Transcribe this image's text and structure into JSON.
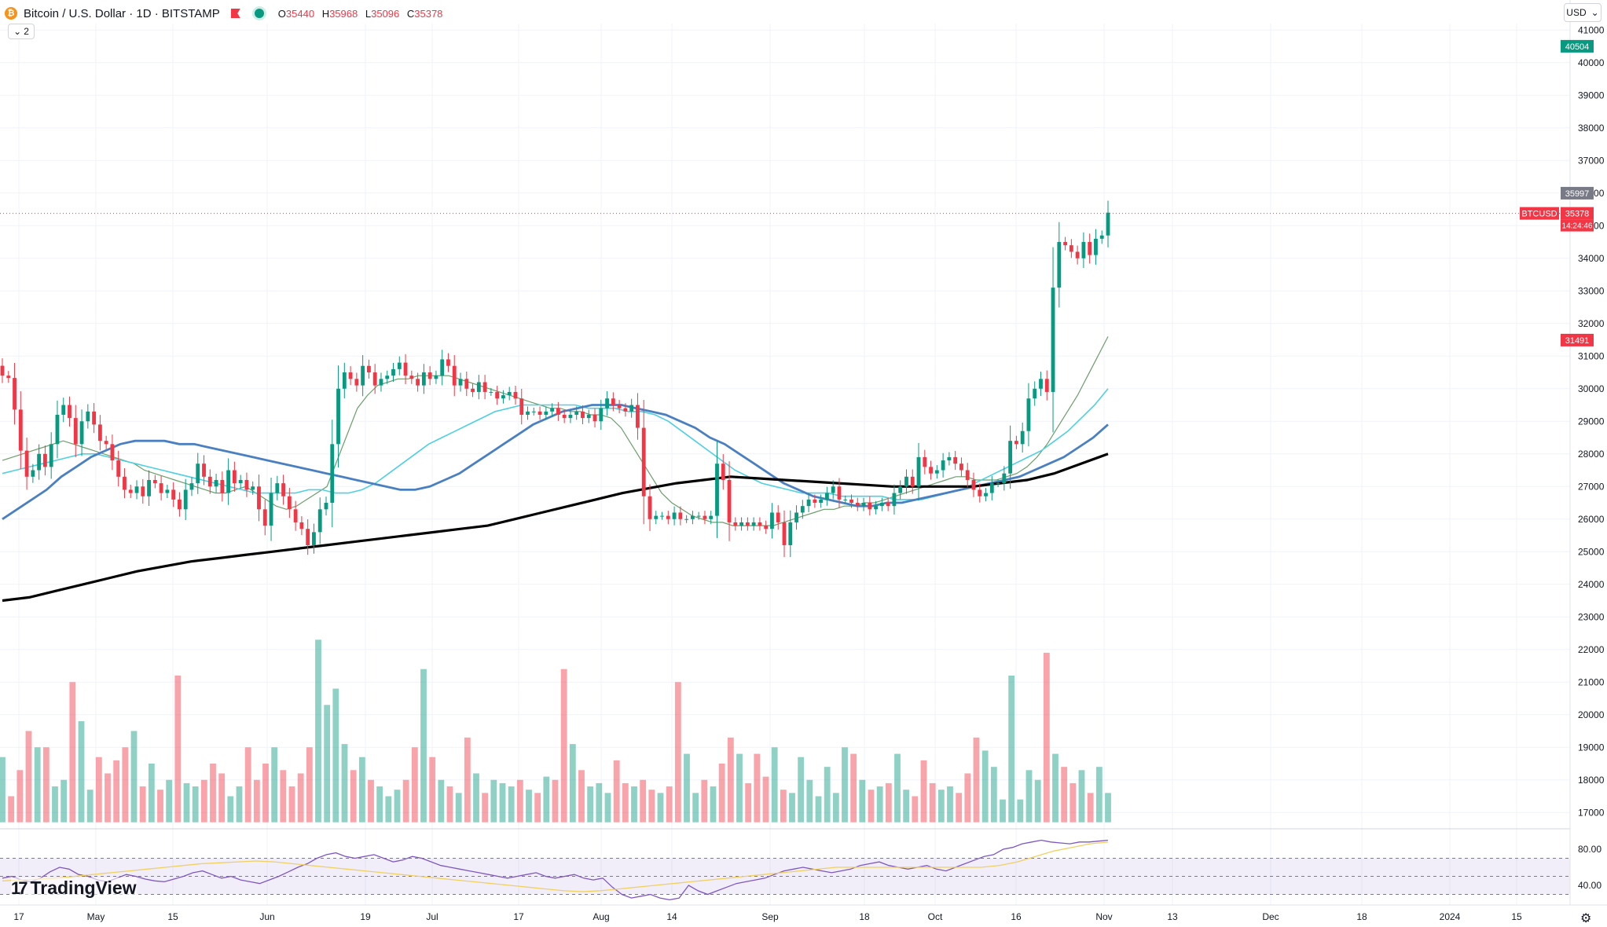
{
  "header": {
    "symbol_title": "Bitcoin / U.S. Dollar · 1D · BITSTAMP",
    "ohlc": [
      {
        "key": "O",
        "value": "35440"
      },
      {
        "key": "H",
        "value": "35968"
      },
      {
        "key": "L",
        "value": "35096"
      },
      {
        "key": "C",
        "value": "35378"
      }
    ],
    "indicators_count": "2",
    "currency": "USD"
  },
  "branding": {
    "logo": "TradingView"
  },
  "colors": {
    "up": "#089981",
    "down": "#f23645",
    "ma_black": "#000000",
    "ma_blue": "#4a80c2",
    "ma_cyan": "#4dd0e1",
    "ma_green": "#6b9e6b",
    "rsi": "#7e57c2",
    "rsi_ma": "#f0d060"
  },
  "chart_data": [
    {
      "type": "candlestick",
      "symbol": "BTCUSD",
      "x_tick_labels": [
        "17",
        "May",
        "15",
        "Jun",
        "19",
        "Jul",
        "17",
        "Aug",
        "14",
        "Sep",
        "18",
        "Oct",
        "16",
        "Nov",
        "13",
        "Dec",
        "18",
        "2024",
        "15"
      ],
      "y_tick_labels": [
        "41000",
        "40000",
        "39000",
        "38000",
        "37000",
        "36000",
        "35000",
        "34000",
        "33000",
        "32000",
        "31000",
        "30000",
        "29000",
        "28000",
        "27000",
        "26000",
        "25000",
        "24000",
        "23000",
        "22000",
        "21000",
        "20000",
        "19000",
        "18000",
        "17000"
      ],
      "ylim": [
        16500,
        41200
      ],
      "price_labels": [
        {
          "label": "",
          "value": 40504,
          "color": "#089981"
        },
        {
          "label": "",
          "value": 35997,
          "color": "#787b86"
        },
        {
          "label": "BTCUSD",
          "value": 35378,
          "color": "#f23645",
          "countdown": "14:24:46"
        },
        {
          "label": "",
          "value": 31491,
          "color": "#f23645"
        }
      ],
      "last_price": 35378,
      "closes": [
        30400,
        30330,
        29360,
        28100,
        27300,
        27500,
        28000,
        27600,
        28300,
        29200,
        29500,
        29100,
        28300,
        29000,
        29300,
        28900,
        28400,
        28300,
        27800,
        27300,
        26900,
        26800,
        27000,
        26700,
        27200,
        27100,
        26800,
        26900,
        26600,
        26300,
        26900,
        27100,
        27700,
        27300,
        27000,
        27200,
        26800,
        27500,
        27100,
        27200,
        26900,
        27000,
        26300,
        25800,
        26800,
        27100,
        26700,
        26300,
        25900,
        25700,
        25200,
        25600,
        26300,
        26500,
        28300,
        30000,
        30500,
        30300,
        30100,
        30700,
        30500,
        30100,
        30300,
        30400,
        30600,
        30800,
        30400,
        30300,
        30100,
        30500,
        30300,
        30400,
        30900,
        30700,
        30100,
        30300,
        30000,
        29900,
        30200,
        29900,
        29900,
        29700,
        29800,
        29900,
        29700,
        29200,
        29300,
        29300,
        29200,
        29300,
        29400,
        29200,
        29100,
        29200,
        29300,
        29100,
        29200,
        29000,
        29400,
        29700,
        29500,
        29400,
        29300,
        29500,
        28800,
        26700,
        26000,
        26100,
        26100,
        26000,
        26200,
        26000,
        26000,
        26100,
        26100,
        26000,
        26100,
        27700,
        27200,
        25900,
        25800,
        25900,
        25800,
        25900,
        25800,
        25700,
        26200,
        25900,
        25200,
        25900,
        26200,
        26400,
        26600,
        26500,
        26600,
        26800,
        27000,
        26600,
        26600,
        26500,
        26400,
        26500,
        26300,
        26400,
        26500,
        26400,
        26800,
        27000,
        27300,
        27000,
        27900,
        27600,
        27400,
        27500,
        27800,
        27900,
        27700,
        27500,
        27200,
        26900,
        26700,
        26800,
        27100,
        27100,
        27400,
        28400,
        28300,
        28700,
        29700,
        30000,
        30300,
        29900,
        33100,
        34500,
        34400,
        34200,
        34000,
        34500,
        34100,
        34600,
        34700,
        35400
      ],
      "series": [
        {
          "name": "",
          "values": [
            27800,
            27900,
            28000,
            28100,
            28200,
            28300,
            28400,
            28300,
            28200,
            28100,
            28000,
            27900,
            27800,
            27700,
            27500,
            27400,
            27300,
            27200,
            27100,
            27000,
            26900,
            26800,
            26800,
            26900,
            27000,
            26800,
            26600,
            26400,
            26300,
            26400,
            26600,
            26800,
            27000,
            27800,
            28600,
            29400,
            29800,
            30100,
            30200,
            30300,
            30300,
            30400,
            30400,
            30400,
            30400,
            30300,
            30200,
            30100,
            30000,
            29900,
            29800,
            29700,
            29600,
            29500,
            29400,
            29400,
            29300,
            29300,
            29200,
            29200,
            29100,
            28800,
            28300,
            27800,
            27300,
            26800,
            26500,
            26300,
            26100,
            26000,
            25900,
            25900,
            25800,
            25800,
            25800,
            25800,
            25800,
            25900,
            26000,
            26100,
            26200,
            26300,
            26300,
            26400,
            26400,
            26500,
            26500,
            26600,
            26700,
            26800,
            26900,
            27000,
            27100,
            27200,
            27300,
            27300,
            27200,
            27200,
            27200,
            27300,
            27400,
            27600,
            27900,
            28300,
            28800,
            29300,
            29800,
            30400,
            31000,
            31600
          ]
        },
        {
          "name": "",
          "values": [
            27400,
            27500,
            27600,
            27700,
            27800,
            27900,
            28000,
            28000,
            27900,
            27800,
            27700,
            27600,
            27500,
            27400,
            27300,
            27200,
            27100,
            27000,
            26900,
            26800,
            26800,
            26800,
            26800,
            26900,
            26900,
            26800,
            26800,
            26900,
            27100,
            27400,
            27700,
            28000,
            28300,
            28500,
            28700,
            28900,
            29100,
            29300,
            29400,
            29500,
            29500,
            29500,
            29500,
            29500,
            29400,
            29400,
            29400,
            29300,
            29300,
            29200,
            29000,
            28700,
            28400,
            28100,
            27800,
            27500,
            27300,
            27100,
            27000,
            26900,
            26800,
            26800,
            26800,
            26700,
            26700,
            26700,
            26700,
            26600,
            26600,
            26600,
            26700,
            26800,
            26900,
            27100,
            27300,
            27500,
            27700,
            27900,
            28100,
            28400,
            28700,
            29100,
            29500,
            30000
          ]
        },
        {
          "name": "",
          "values": [
            26000,
            26300,
            26600,
            26900,
            27300,
            27600,
            27900,
            28100,
            28300,
            28400,
            28400,
            28400,
            28300,
            28300,
            28200,
            28100,
            28000,
            27900,
            27800,
            27700,
            27600,
            27500,
            27400,
            27300,
            27200,
            27100,
            27000,
            26900,
            26900,
            27000,
            27200,
            27400,
            27700,
            28000,
            28300,
            28600,
            28900,
            29100,
            29300,
            29400,
            29500,
            29500,
            29500,
            29400,
            29300,
            29200,
            29000,
            28800,
            28500,
            28300,
            28000,
            27700,
            27400,
            27100,
            26900,
            26700,
            26600,
            26500,
            26400,
            26400,
            26500,
            26500,
            26600,
            26700,
            26800,
            26900,
            27000,
            27100,
            27200,
            27300,
            27500,
            27700,
            27900,
            28200,
            28500,
            28900
          ]
        },
        {
          "name": "",
          "values": [
            23500,
            23600,
            23800,
            24000,
            24200,
            24400,
            24550,
            24700,
            24800,
            24900,
            25000,
            25100,
            25200,
            25300,
            25400,
            25500,
            25600,
            25700,
            25800,
            26000,
            26200,
            26400,
            26600,
            26800,
            26950,
            27100,
            27200,
            27300,
            27250,
            27200,
            27150,
            27100,
            27050,
            27000,
            27000,
            27000,
            27000,
            27100,
            27200,
            27400,
            27700,
            28000
          ]
        }
      ],
      "volume": [
        18700,
        17500,
        18300,
        19500,
        19000,
        19000,
        17800,
        18000,
        21000,
        19800,
        17700,
        18700,
        18200,
        18600,
        19000,
        19500,
        17800,
        18500,
        17700,
        18000,
        21200,
        17900,
        17800,
        18000,
        18500,
        18200,
        17500,
        17800,
        19000,
        18000,
        18500,
        19000,
        18300,
        17800,
        18200,
        19000,
        22300,
        20300,
        20800,
        19100,
        18300,
        18700,
        18000,
        17800,
        17500,
        17700,
        18000,
        19000,
        21400,
        18700,
        18000,
        17800,
        17600,
        19300,
        18200,
        17600,
        18000,
        17900,
        17800,
        18000,
        17700,
        17600,
        18100,
        18000,
        21400,
        19100,
        18300,
        17800,
        17900,
        17600,
        18600,
        17900,
        17800,
        18000,
        17700,
        17600,
        17800,
        21000,
        18800,
        17600,
        18000,
        17800,
        18500,
        19300,
        18800,
        17900,
        18800,
        18100,
        19000,
        17700,
        17600,
        18700,
        18000,
        17500,
        18400,
        17600,
        19000,
        18800,
        18000,
        17700,
        17800,
        17900,
        18800,
        17700,
        17500,
        18600,
        17900,
        17700,
        17800,
        17600,
        18200,
        19300,
        18900,
        18400,
        17400,
        21200,
        17400,
        18300,
        18000,
        21900,
        18800,
        18400,
        17900,
        18300,
        17600,
        18400,
        17600
      ]
    },
    {
      "type": "line",
      "name": "",
      "y_tick_labels": [
        "80.00",
        "40.00"
      ],
      "ylim": [
        20,
        100
      ],
      "bands": [
        70,
        50,
        30
      ],
      "series": [
        {
          "name": "",
          "values": [
            48,
            50,
            46,
            44,
            48,
            55,
            60,
            58,
            52,
            50,
            46,
            44,
            48,
            52,
            50,
            47,
            45,
            44,
            47,
            50,
            54,
            56,
            52,
            48,
            50,
            46,
            44,
            42,
            46,
            50,
            55,
            60,
            64,
            70,
            74,
            76,
            72,
            70,
            72,
            74,
            70,
            66,
            68,
            72,
            70,
            66,
            62,
            60,
            58,
            56,
            54,
            52,
            50,
            48,
            50,
            52,
            54,
            50,
            48,
            50,
            52,
            48,
            46,
            48,
            38,
            30,
            26,
            28,
            30,
            26,
            24,
            26,
            40,
            34,
            30,
            34,
            38,
            42,
            44,
            46,
            48,
            52,
            56,
            58,
            60,
            58,
            56,
            54,
            56,
            58,
            62,
            64,
            66,
            62,
            60,
            58,
            60,
            62,
            58,
            56,
            60,
            64,
            68,
            72,
            74,
            80,
            82,
            86,
            88,
            90,
            88,
            87,
            86,
            88,
            88,
            89,
            90
          ]
        },
        {
          "name": "",
          "values": [
            45,
            46,
            47,
            48,
            50,
            52,
            54,
            56,
            58,
            60,
            62,
            64,
            65,
            66,
            67,
            66,
            64,
            62,
            60,
            58,
            56,
            54,
            52,
            50,
            48,
            46,
            44,
            42,
            40,
            38,
            36,
            34,
            33,
            34,
            36,
            38,
            40,
            42,
            44,
            46,
            48,
            50,
            52,
            54,
            56,
            58,
            60,
            60,
            60,
            60,
            60,
            60,
            60,
            60,
            60,
            62,
            66,
            72,
            78,
            82,
            86,
            88
          ]
        }
      ]
    }
  ]
}
